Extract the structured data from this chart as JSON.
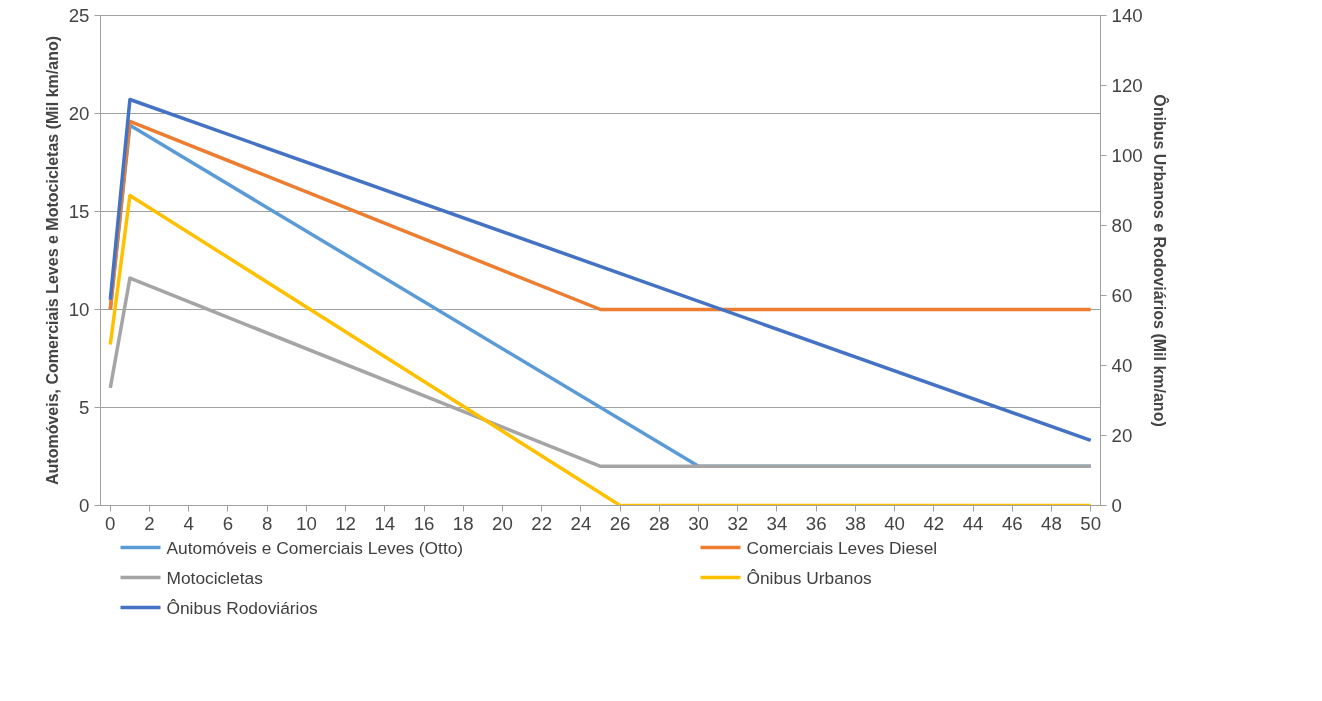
{
  "chart_data": {
    "type": "line",
    "ylabel": "Automóveis, Comerciais Leves e Motocicletas (Mil km/ano)",
    "y2label": "Ônibus Urbanos e Rodoviários (Mil km/ano)",
    "xlim": [
      -0.5,
      50.5
    ],
    "xticks": [
      0,
      2,
      4,
      6,
      8,
      10,
      12,
      14,
      16,
      18,
      20,
      22,
      24,
      26,
      28,
      30,
      32,
      34,
      36,
      38,
      40,
      42,
      44,
      46,
      48,
      50
    ],
    "ylim": [
      0,
      25
    ],
    "yticks": [
      0,
      5,
      10,
      15,
      20,
      25
    ],
    "y2lim": [
      0,
      140
    ],
    "y2ticks": [
      0,
      20,
      40,
      60,
      80,
      100,
      120,
      140
    ],
    "grid": "y",
    "legend": "bottom",
    "marker": "none",
    "line_style": "solid",
    "series": [
      {
        "name": "Automóveis e Comerciais Leves (Otto)",
        "color": "#5b9bd5",
        "x": [
          0,
          1,
          30,
          50
        ],
        "values": [
          10,
          19.4,
          2,
          2
        ]
      },
      {
        "name": "Comerciais Leves Diesel",
        "color": "#ed7d31",
        "x": [
          0,
          1,
          25,
          50
        ],
        "values": [
          10,
          19.6,
          10,
          10
        ]
      },
      {
        "name": "Motocicletas",
        "color": "#a5a5a5",
        "x": [
          0,
          1,
          25,
          50
        ],
        "values": [
          6,
          11.6,
          2,
          2
        ]
      },
      {
        "name": "Ônibus Urbanos",
        "color": "#ffc000",
        "axis": "y2",
        "x": [
          0,
          1,
          26,
          50
        ],
        "values": [
          46,
          88.6,
          0,
          0
        ]
      },
      {
        "name": "Ônibus Rodoviários",
        "color": "#4472c4",
        "axis": "y2",
        "x": [
          0,
          1,
          50
        ],
        "values": [
          58.8,
          116,
          18.6
        ]
      }
    ]
  }
}
